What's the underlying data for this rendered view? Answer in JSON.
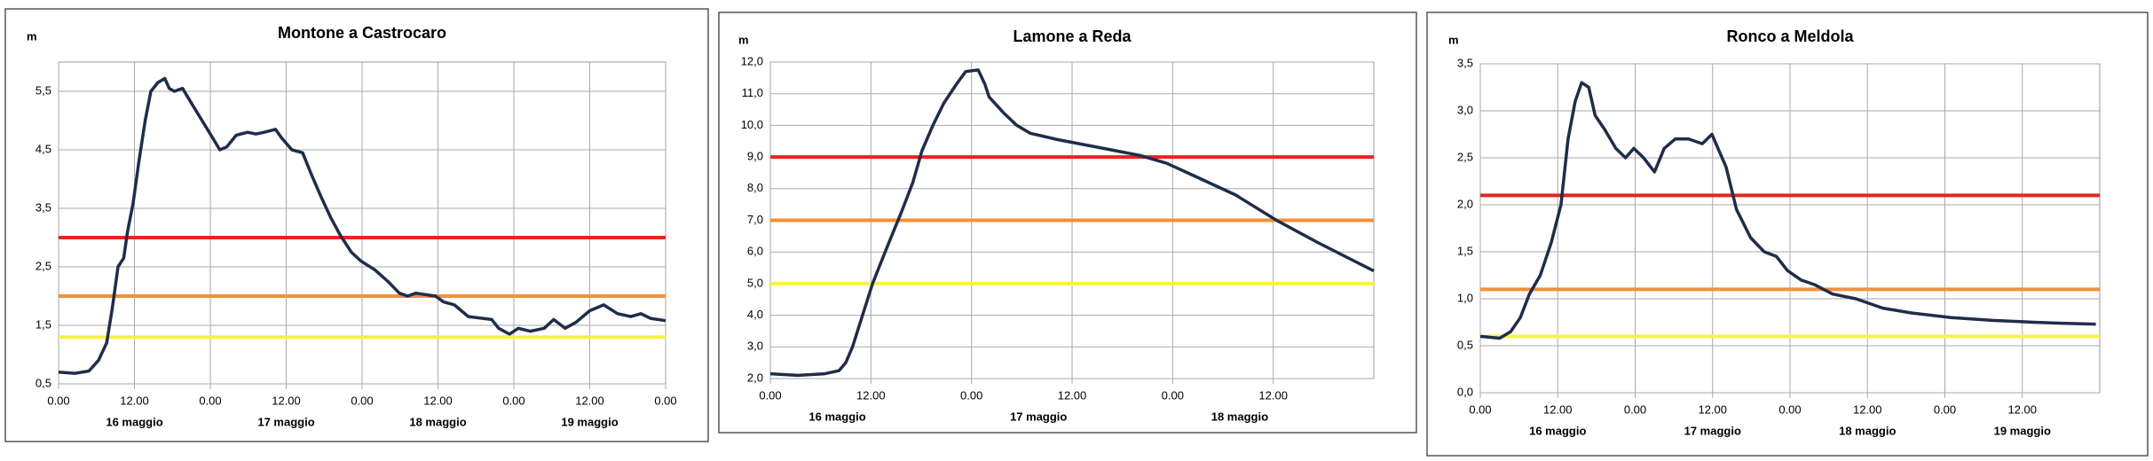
{
  "chart_data": [
    {
      "type": "line",
      "title": "Montone a Castrocaro",
      "y_label": "m",
      "x": [
        0,
        2.6,
        4.8,
        6.3,
        7.6,
        8.5,
        9.4,
        10.3,
        10.9,
        11.8,
        12.7,
        13.7,
        14.6,
        15.7,
        16.8,
        17.5,
        18.3,
        19.6,
        21,
        22.7,
        24.4,
        25.5,
        26.6,
        28.1,
        29.9,
        31.2,
        32.5,
        34.3,
        35.3,
        36.9,
        38.6,
        39.9,
        41.5,
        43,
        44.5,
        46.3,
        47.8,
        50,
        52.1,
        53.9,
        55.2,
        56.5,
        59.6,
        60.9,
        62.6,
        64.8,
        68.5,
        69.6,
        71.3,
        72.7,
        74.6,
        76.8,
        78.3,
        80.1,
        81.8,
        84,
        86.2,
        88.4,
        90.5,
        92.1,
        93.6,
        96
      ],
      "values": [
        0.7,
        0.68,
        0.72,
        0.9,
        1.2,
        1.8,
        2.5,
        2.65,
        3.1,
        3.6,
        4.3,
        5.0,
        5.5,
        5.65,
        5.72,
        5.55,
        5.5,
        5.55,
        5.3,
        5.0,
        4.7,
        4.5,
        4.55,
        4.75,
        4.8,
        4.77,
        4.8,
        4.85,
        4.7,
        4.5,
        4.45,
        4.1,
        3.7,
        3.35,
        3.05,
        2.75,
        2.6,
        2.45,
        2.25,
        2.05,
        2.0,
        2.05,
        2.0,
        1.9,
        1.85,
        1.65,
        1.6,
        1.45,
        1.35,
        1.45,
        1.4,
        1.45,
        1.6,
        1.45,
        1.55,
        1.75,
        1.85,
        1.7,
        1.65,
        1.7,
        1.62,
        1.58
      ],
      "color": "#1f2d4a",
      "thresholds": [
        {
          "value": 3.0,
          "color": "#e3261f"
        },
        {
          "value": 2.0,
          "color": "#f0913a"
        },
        {
          "value": 1.3,
          "color": "#f7f246"
        }
      ],
      "xlim": [
        0,
        96
      ],
      "xticks": [
        {
          "value": 0,
          "label": "0.00"
        },
        {
          "value": 12,
          "label": "12.00"
        },
        {
          "value": 24,
          "label": "0.00"
        },
        {
          "value": 36,
          "label": "12.00"
        },
        {
          "value": 48,
          "label": "0.00"
        },
        {
          "value": 60,
          "label": "12.00"
        },
        {
          "value": 72,
          "label": "0.00"
        },
        {
          "value": 84,
          "label": "12.00"
        },
        {
          "value": 96,
          "label": "0.00"
        }
      ],
      "day_labels": [
        {
          "value": 12,
          "label": "16 maggio"
        },
        {
          "value": 36,
          "label": "17 maggio"
        },
        {
          "value": 60,
          "label": "18 maggio"
        },
        {
          "value": 84,
          "label": "19 maggio"
        }
      ],
      "ylim": [
        0.5,
        6.0
      ],
      "yticks": [
        {
          "value": 0.5,
          "label": "0,5"
        },
        {
          "value": 1.5,
          "label": "1,5"
        },
        {
          "value": 2.5,
          "label": "2,5"
        },
        {
          "value": 3.5,
          "label": "3,5"
        },
        {
          "value": 4.5,
          "label": "4,5"
        },
        {
          "value": 5.5,
          "label": "5,5"
        }
      ],
      "grid": true
    },
    {
      "type": "line",
      "title": "Lamone a Reda",
      "y_label": "m",
      "x": [
        0,
        3.3,
        6.5,
        8.2,
        9.0,
        9.8,
        11.0,
        12.2,
        14.0,
        15.7,
        17.0,
        18.1,
        19.4,
        20.7,
        22.2,
        23.3,
        24.8,
        25.6,
        26.1,
        27.8,
        29.4,
        31.0,
        34.3,
        39.2,
        44.1,
        47.3,
        50.6,
        55.5,
        60.4,
        65.3,
        72
      ],
      "values": [
        2.15,
        2.1,
        2.15,
        2.25,
        2.5,
        3.0,
        4.0,
        5.0,
        6.2,
        7.3,
        8.2,
        9.2,
        10.0,
        10.7,
        11.3,
        11.7,
        11.75,
        11.3,
        10.9,
        10.4,
        10.0,
        9.75,
        9.55,
        9.3,
        9.05,
        8.8,
        8.4,
        7.8,
        7.0,
        6.3,
        5.4
      ],
      "color": "#1f2d4a",
      "thresholds": [
        {
          "value": 9.0,
          "color": "#e3261f"
        },
        {
          "value": 7.0,
          "color": "#f0913a"
        },
        {
          "value": 5.0,
          "color": "#f7f246"
        }
      ],
      "xlim": [
        0,
        72
      ],
      "xticks": [
        {
          "value": 0,
          "label": "0.00"
        },
        {
          "value": 12,
          "label": "12.00"
        },
        {
          "value": 24,
          "label": "0.00"
        },
        {
          "value": 36,
          "label": "12.00"
        },
        {
          "value": 48,
          "label": "0.00"
        },
        {
          "value": 60,
          "label": "12.00"
        }
      ],
      "day_labels": [
        {
          "value": 8,
          "label": "16 maggio"
        },
        {
          "value": 32,
          "label": "17 maggio"
        },
        {
          "value": 56,
          "label": "18 maggio"
        }
      ],
      "ylim": [
        2.0,
        12.0
      ],
      "yticks": [
        {
          "value": 2,
          "label": "2,0"
        },
        {
          "value": 3,
          "label": "3,0"
        },
        {
          "value": 4,
          "label": "4,0"
        },
        {
          "value": 5,
          "label": "5,0"
        },
        {
          "value": 6,
          "label": "6,0"
        },
        {
          "value": 7,
          "label": "7,0"
        },
        {
          "value": 8,
          "label": "8,0"
        },
        {
          "value": 9,
          "label": "9,0"
        },
        {
          "value": 10,
          "label": "10,0"
        },
        {
          "value": 11,
          "label": "11,0"
        },
        {
          "value": 12,
          "label": "12,0"
        }
      ],
      "grid": true
    },
    {
      "type": "line",
      "title": "Ronco a Meldola",
      "y_label": "m",
      "x": [
        0,
        3.0,
        4.7,
        6.2,
        7.6,
        9.3,
        11.0,
        12.5,
        13.6,
        14.7,
        15.7,
        16.8,
        17.8,
        19.3,
        21.0,
        22.5,
        23.8,
        25.3,
        27.0,
        28.5,
        30.2,
        32.3,
        34.4,
        35.9,
        38.1,
        39.7,
        41.9,
        44.0,
        45.9,
        47.6,
        49.7,
        51.8,
        54.6,
        58.2,
        62.4,
        66.7,
        73.0,
        79.4,
        85.8,
        90.1,
        95.4
      ],
      "values": [
        0.6,
        0.58,
        0.65,
        0.8,
        1.05,
        1.25,
        1.6,
        2.0,
        2.7,
        3.1,
        3.3,
        3.25,
        2.95,
        2.8,
        2.6,
        2.5,
        2.6,
        2.5,
        2.35,
        2.6,
        2.7,
        2.7,
        2.65,
        2.75,
        2.4,
        1.95,
        1.65,
        1.5,
        1.45,
        1.3,
        1.2,
        1.15,
        1.05,
        1.0,
        0.9,
        0.85,
        0.8,
        0.77,
        0.75,
        0.74,
        0.73
      ],
      "color": "#1f2d4a",
      "thresholds": [
        {
          "value": 2.1,
          "color": "#e3261f"
        },
        {
          "value": 1.1,
          "color": "#f0913a"
        },
        {
          "value": 0.6,
          "color": "#f7f246"
        }
      ],
      "xlim": [
        0,
        96
      ],
      "xticks": [
        {
          "value": 0,
          "label": "0.00"
        },
        {
          "value": 12,
          "label": "12.00"
        },
        {
          "value": 24,
          "label": "0.00"
        },
        {
          "value": 36,
          "label": "12.00"
        },
        {
          "value": 48,
          "label": "0.00"
        },
        {
          "value": 60,
          "label": "12.00"
        },
        {
          "value": 72,
          "label": "0.00"
        },
        {
          "value": 84,
          "label": "12.00"
        }
      ],
      "day_labels": [
        {
          "value": 12,
          "label": "16 maggio"
        },
        {
          "value": 36,
          "label": "17 maggio"
        },
        {
          "value": 60,
          "label": "18 maggio"
        },
        {
          "value": 84,
          "label": "19 maggio"
        }
      ],
      "ylim": [
        0,
        3.5
      ],
      "yticks": [
        {
          "value": 0,
          "label": "0,0"
        },
        {
          "value": 0.5,
          "label": "0,5"
        },
        {
          "value": 1,
          "label": "1,0"
        },
        {
          "value": 1.5,
          "label": "1,5"
        },
        {
          "value": 2,
          "label": "2,0"
        },
        {
          "value": 2.5,
          "label": "2,5"
        },
        {
          "value": 3,
          "label": "3,0"
        },
        {
          "value": 3.5,
          "label": "3,5"
        }
      ],
      "grid": true
    }
  ]
}
